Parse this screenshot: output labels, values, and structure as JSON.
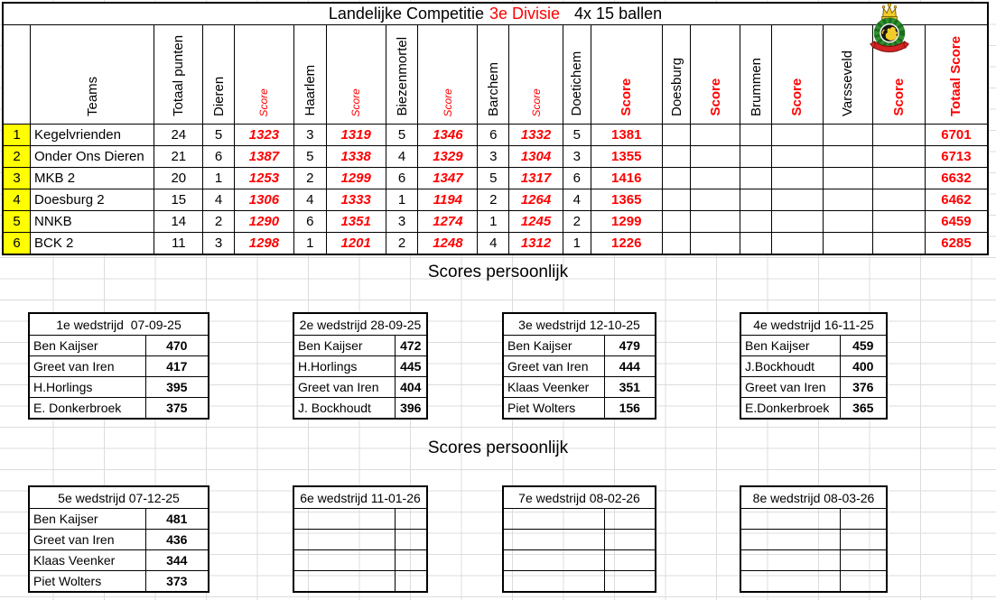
{
  "colors": {
    "score_red": "#ff0000",
    "rank_yellow": "#ffff00",
    "grid_line": "#dcdcdc"
  },
  "title": {
    "prefix": "Landelijke Competitie",
    "division": "3e Divisie",
    "suffix": "4x 15 ballen"
  },
  "logo": {
    "icon": "royal-crest-logo"
  },
  "league_table": {
    "headers": {
      "teams": "Teams",
      "totaal_punten": "Totaal punten",
      "score": "Score",
      "totaal_score": "Totaal Score"
    },
    "venues": [
      "Dieren",
      "Haarlem",
      "Biezenmortel",
      "Barchem",
      "Doetichem",
      "Doesburg",
      "Brummen",
      "Varsseveld"
    ],
    "rows": [
      {
        "rank": "1",
        "team": "Kegelvrienden",
        "punten": "24",
        "results": [
          {
            "p": "5",
            "s": "1323"
          },
          {
            "p": "3",
            "s": "1319"
          },
          {
            "p": "5",
            "s": "1346"
          },
          {
            "p": "6",
            "s": "1332"
          },
          {
            "p": "5",
            "s": "1381"
          },
          {
            "p": "",
            "s": ""
          },
          {
            "p": "",
            "s": ""
          },
          {
            "p": "",
            "s": ""
          }
        ],
        "totaal_score": "6701"
      },
      {
        "rank": "2",
        "team": "Onder Ons Dieren",
        "punten": "21",
        "results": [
          {
            "p": "6",
            "s": "1387"
          },
          {
            "p": "5",
            "s": "1338"
          },
          {
            "p": "4",
            "s": "1329"
          },
          {
            "p": "3",
            "s": "1304"
          },
          {
            "p": "3",
            "s": "1355"
          },
          {
            "p": "",
            "s": ""
          },
          {
            "p": "",
            "s": ""
          },
          {
            "p": "",
            "s": ""
          }
        ],
        "totaal_score": "6713"
      },
      {
        "rank": "3",
        "team": "MKB 2",
        "punten": "20",
        "results": [
          {
            "p": "1",
            "s": "1253"
          },
          {
            "p": "2",
            "s": "1299"
          },
          {
            "p": "6",
            "s": "1347"
          },
          {
            "p": "5",
            "s": "1317"
          },
          {
            "p": "6",
            "s": "1416"
          },
          {
            "p": "",
            "s": ""
          },
          {
            "p": "",
            "s": ""
          },
          {
            "p": "",
            "s": ""
          }
        ],
        "totaal_score": "6632"
      },
      {
        "rank": "4",
        "team": "Doesburg 2",
        "punten": "15",
        "results": [
          {
            "p": "4",
            "s": "1306"
          },
          {
            "p": "4",
            "s": "1333"
          },
          {
            "p": "1",
            "s": "1194"
          },
          {
            "p": "2",
            "s": "1264"
          },
          {
            "p": "4",
            "s": "1365"
          },
          {
            "p": "",
            "s": ""
          },
          {
            "p": "",
            "s": ""
          },
          {
            "p": "",
            "s": ""
          }
        ],
        "totaal_score": "6462"
      },
      {
        "rank": "5",
        "team": "NNKB",
        "punten": "14",
        "results": [
          {
            "p": "2",
            "s": "1290"
          },
          {
            "p": "6",
            "s": "1351"
          },
          {
            "p": "3",
            "s": "1274"
          },
          {
            "p": "1",
            "s": "1245"
          },
          {
            "p": "2",
            "s": "1299"
          },
          {
            "p": "",
            "s": ""
          },
          {
            "p": "",
            "s": ""
          },
          {
            "p": "",
            "s": ""
          }
        ],
        "totaal_score": "6459"
      },
      {
        "rank": "6",
        "team": "BCK 2",
        "punten": "11",
        "results": [
          {
            "p": "3",
            "s": "1298"
          },
          {
            "p": "1",
            "s": "1201"
          },
          {
            "p": "2",
            "s": "1248"
          },
          {
            "p": "4",
            "s": "1312"
          },
          {
            "p": "1",
            "s": "1226"
          },
          {
            "p": "",
            "s": ""
          },
          {
            "p": "",
            "s": ""
          },
          {
            "p": "",
            "s": ""
          }
        ],
        "totaal_score": "6285"
      }
    ]
  },
  "sections": [
    {
      "heading": "Scores persoonlijk",
      "boxes": [
        {
          "title": "1e wedstrijd  07-09-25",
          "rows": [
            {
              "name": "Ben Kaijser",
              "score": "470"
            },
            {
              "name": "Greet van Iren",
              "score": "417"
            },
            {
              "name": "H.Horlings",
              "score": "395"
            },
            {
              "name": "E. Donkerbroek",
              "score": "375"
            }
          ]
        },
        {
          "title": "2e wedstrijd 28-09-25",
          "rows": [
            {
              "name": "Ben Kaijser",
              "score": "472"
            },
            {
              "name": "H.Horlings",
              "score": "445"
            },
            {
              "name": "Greet van Iren",
              "score": "404"
            },
            {
              "name": "J. Bockhoudt",
              "score": "396"
            }
          ]
        },
        {
          "title": "3e wedstrijd 12-10-25",
          "rows": [
            {
              "name": "Ben Kaijser",
              "score": "479"
            },
            {
              "name": "Greet van Iren",
              "score": "444"
            },
            {
              "name": "Klaas Veenker",
              "score": "351"
            },
            {
              "name": "Piet Wolters",
              "score": "156"
            }
          ]
        },
        {
          "title": "4e wedstrijd 16-11-25",
          "rows": [
            {
              "name": "Ben Kaijser",
              "score": "459"
            },
            {
              "name": "J.Bockhoudt",
              "score": "400"
            },
            {
              "name": "Greet van Iren",
              "score": "376"
            },
            {
              "name": "E.Donkerbroek",
              "score": "365"
            }
          ]
        }
      ]
    },
    {
      "heading": "Scores persoonlijk",
      "boxes": [
        {
          "title": "5e wedstrijd 07-12-25",
          "rows": [
            {
              "name": "Ben Kaijser",
              "score": "481"
            },
            {
              "name": "Greet van Iren",
              "score": "436"
            },
            {
              "name": "Klaas Veenker",
              "score": "344"
            },
            {
              "name": "Piet Wolters",
              "score": "373"
            }
          ]
        },
        {
          "title": "6e wedstrijd 11-01-26",
          "rows": [
            {
              "name": "",
              "score": ""
            },
            {
              "name": "",
              "score": ""
            },
            {
              "name": "",
              "score": ""
            },
            {
              "name": "",
              "score": ""
            }
          ]
        },
        {
          "title": "7e wedstrijd 08-02-26",
          "rows": [
            {
              "name": "",
              "score": ""
            },
            {
              "name": "",
              "score": ""
            },
            {
              "name": "",
              "score": ""
            },
            {
              "name": "",
              "score": ""
            }
          ]
        },
        {
          "title": "8e wedstrijd 08-03-26",
          "rows": [
            {
              "name": "",
              "score": ""
            },
            {
              "name": "",
              "score": ""
            },
            {
              "name": "",
              "score": ""
            },
            {
              "name": "",
              "score": ""
            }
          ]
        }
      ]
    }
  ]
}
